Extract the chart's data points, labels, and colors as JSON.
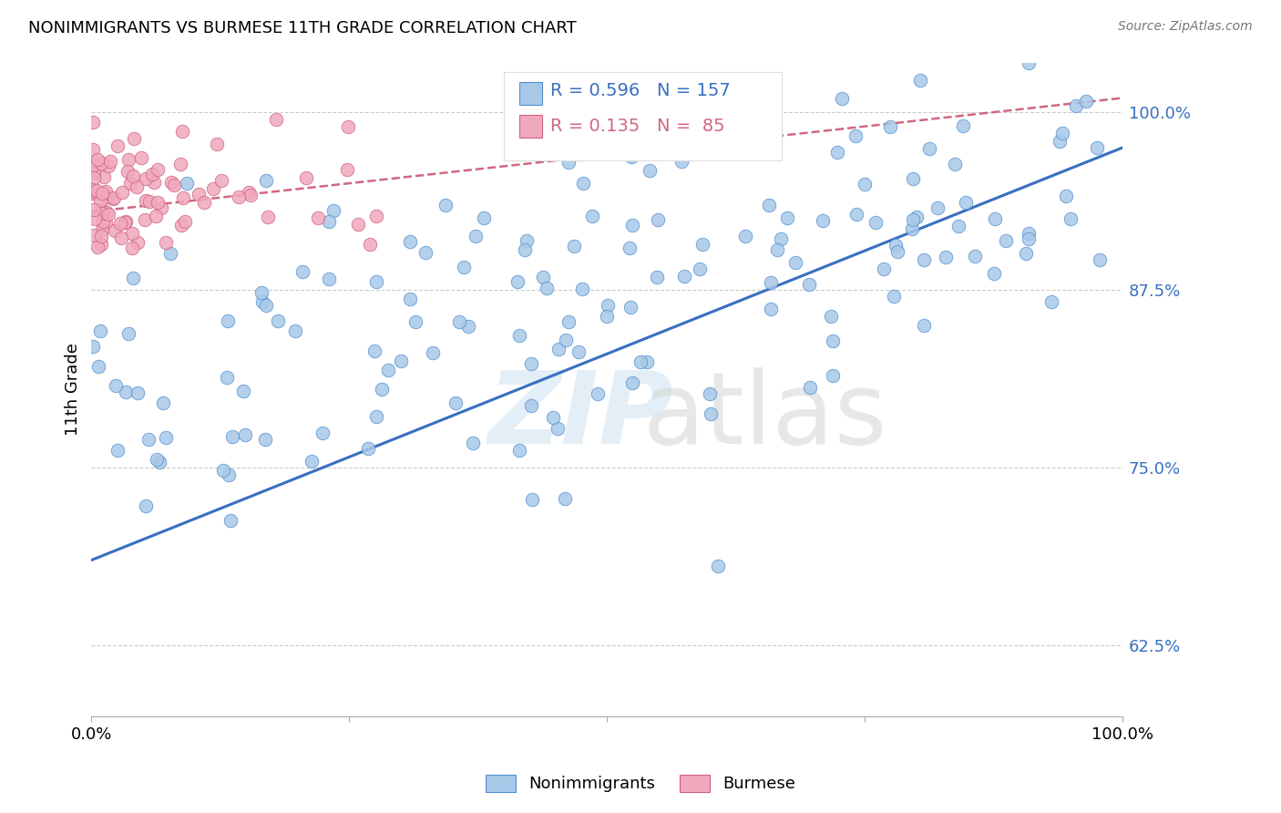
{
  "title": "NONIMMIGRANTS VS BURMESE 11TH GRADE CORRELATION CHART",
  "source": "Source: ZipAtlas.com",
  "ylabel": "11th Grade",
  "y_tick_labels": [
    "62.5%",
    "75.0%",
    "87.5%",
    "100.0%"
  ],
  "y_tick_values": [
    0.625,
    0.75,
    0.875,
    1.0
  ],
  "x_range": [
    0.0,
    1.0
  ],
  "y_range": [
    0.575,
    1.035
  ],
  "blue_R": 0.596,
  "blue_N": 157,
  "pink_R": 0.135,
  "pink_N": 85,
  "blue_color": "#A8C8E8",
  "pink_color": "#F0A8BC",
  "blue_edge_color": "#5090D0",
  "pink_edge_color": "#D06080",
  "blue_line_color": "#3870C0",
  "pink_line_color": "#D06880",
  "legend_label_blue": "Nonimmigrants",
  "legend_label_pink": "Burmese",
  "blue_line_x0": 0.0,
  "blue_line_y0": 0.685,
  "blue_line_x1": 1.0,
  "blue_line_y1": 0.975,
  "pink_line_x0": 0.0,
  "pink_line_y0": 0.93,
  "pink_line_x1": 1.0,
  "pink_line_y1": 1.01
}
